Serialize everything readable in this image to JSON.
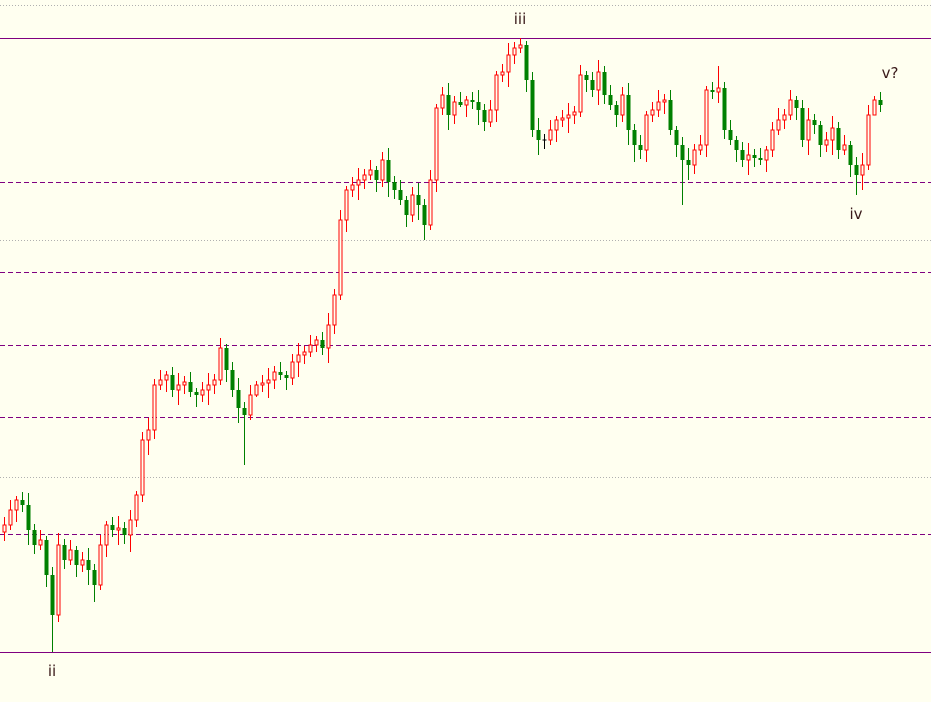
{
  "chart_data": {
    "type": "candlestick",
    "title": "",
    "xlabel": "",
    "ylabel": "",
    "ylim": [
      0,
      702
    ],
    "grid": false,
    "colors": {
      "background": "#fffff0",
      "up": "#ff0000",
      "down": "#008000",
      "doji": "#000000",
      "level": "#800080",
      "dotted": "#b0b0b0",
      "label": "#3a1a1a"
    },
    "candle_fields": [
      "open",
      "high",
      "low",
      "close"
    ],
    "candles": [
      [
        170,
        185,
        161,
        177
      ],
      [
        177,
        202,
        172,
        192
      ],
      [
        192,
        206,
        180,
        202
      ],
      [
        202,
        210,
        190,
        197
      ],
      [
        197,
        209,
        157,
        172
      ],
      [
        172,
        178,
        148,
        157
      ],
      [
        157,
        172,
        152,
        162
      ],
      [
        162,
        166,
        115,
        127
      ],
      [
        127,
        135,
        50,
        87
      ],
      [
        87,
        169,
        80,
        157
      ],
      [
        157,
        163,
        133,
        142
      ],
      [
        142,
        162,
        137,
        152
      ],
      [
        152,
        156,
        125,
        137
      ],
      [
        137,
        150,
        130,
        142
      ],
      [
        142,
        154,
        117,
        132
      ],
      [
        132,
        138,
        100,
        117
      ],
      [
        117,
        167,
        112,
        157
      ],
      [
        157,
        181,
        145,
        177
      ],
      [
        177,
        185,
        165,
        172
      ],
      [
        172,
        186,
        157,
        174
      ],
      [
        174,
        180,
        158,
        167
      ],
      [
        167,
        192,
        150,
        182
      ],
      [
        182,
        211,
        175,
        207
      ],
      [
        207,
        270,
        200,
        262
      ],
      [
        262,
        284,
        247,
        272
      ],
      [
        272,
        323,
        263,
        317
      ],
      [
        317,
        332,
        312,
        322
      ],
      [
        322,
        331,
        310,
        327
      ],
      [
        327,
        335,
        305,
        312
      ],
      [
        312,
        329,
        297,
        317
      ],
      [
        317,
        326,
        308,
        320
      ],
      [
        320,
        330,
        305,
        310
      ],
      [
        310,
        314,
        295,
        307
      ],
      [
        307,
        320,
        300,
        312
      ],
      [
        312,
        329,
        297,
        317
      ],
      [
        317,
        328,
        308,
        322
      ],
      [
        322,
        364,
        317,
        354
      ],
      [
        354,
        358,
        320,
        332
      ],
      [
        332,
        340,
        305,
        312
      ],
      [
        312,
        324,
        279,
        294
      ],
      [
        294,
        300,
        237,
        287
      ],
      [
        287,
        317,
        282,
        307
      ],
      [
        307,
        321,
        305,
        317
      ],
      [
        317,
        327,
        310,
        319
      ],
      [
        319,
        334,
        304,
        322
      ],
      [
        322,
        336,
        313,
        330
      ],
      [
        330,
        340,
        322,
        327
      ],
      [
        327,
        331,
        312,
        324
      ],
      [
        324,
        348,
        317,
        340
      ],
      [
        340,
        359,
        325,
        347
      ],
      [
        347,
        356,
        338,
        350
      ],
      [
        350,
        367,
        345,
        357
      ],
      [
        357,
        366,
        350,
        362
      ],
      [
        362,
        370,
        347,
        354
      ],
      [
        354,
        389,
        339,
        377
      ],
      [
        377,
        413,
        368,
        407
      ],
      [
        407,
        492,
        402,
        482
      ],
      [
        482,
        516,
        470,
        512
      ],
      [
        512,
        525,
        505,
        517
      ],
      [
        517,
        534,
        502,
        522
      ],
      [
        522,
        533,
        513,
        527
      ],
      [
        527,
        542,
        522,
        532
      ],
      [
        532,
        536,
        510,
        522
      ],
      [
        522,
        550,
        515,
        542
      ],
      [
        542,
        554,
        505,
        520
      ],
      [
        520,
        526,
        503,
        512
      ],
      [
        512,
        522,
        497,
        502
      ],
      [
        502,
        506,
        475,
        487
      ],
      [
        487,
        515,
        480,
        507
      ],
      [
        507,
        519,
        482,
        497
      ],
      [
        497,
        503,
        462,
        477
      ],
      [
        477,
        532,
        472,
        522
      ],
      [
        522,
        598,
        510,
        594
      ],
      [
        594,
        615,
        587,
        607
      ],
      [
        607,
        619,
        572,
        587
      ],
      [
        587,
        606,
        578,
        600
      ],
      [
        600,
        610,
        595,
        597
      ],
      [
        597,
        606,
        585,
        602
      ],
      [
        602,
        610,
        593,
        600
      ],
      [
        600,
        612,
        577,
        592
      ],
      [
        592,
        598,
        571,
        580
      ],
      [
        580,
        602,
        575,
        592
      ],
      [
        592,
        631,
        580,
        627
      ],
      [
        627,
        638,
        620,
        630
      ],
      [
        630,
        659,
        615,
        647
      ],
      [
        647,
        660,
        638,
        654
      ],
      [
        654,
        664,
        649,
        657
      ],
      [
        657,
        661,
        610,
        622
      ],
      [
        622,
        630,
        565,
        572
      ],
      [
        572,
        584,
        547,
        562
      ],
      [
        562,
        568,
        553,
        562
      ],
      [
        562,
        582,
        557,
        572
      ],
      [
        572,
        586,
        560,
        582
      ],
      [
        582,
        592,
        575,
        584
      ],
      [
        584,
        599,
        569,
        587
      ],
      [
        587,
        596,
        578,
        590
      ],
      [
        590,
        637,
        585,
        627
      ],
      [
        627,
        631,
        610,
        622
      ],
      [
        622,
        630,
        605,
        612
      ],
      [
        612,
        642,
        597,
        630
      ],
      [
        630,
        636,
        598,
        607
      ],
      [
        607,
        617,
        592,
        597
      ],
      [
        597,
        601,
        575,
        587
      ],
      [
        587,
        615,
        580,
        607
      ],
      [
        607,
        619,
        557,
        572
      ],
      [
        572,
        578,
        540,
        557
      ],
      [
        557,
        567,
        543,
        552
      ],
      [
        552,
        591,
        540,
        587
      ],
      [
        587,
        600,
        580,
        592
      ],
      [
        592,
        612,
        585,
        600
      ],
      [
        600,
        608,
        588,
        602
      ],
      [
        602,
        612,
        567,
        572
      ],
      [
        572,
        576,
        545,
        557
      ],
      [
        557,
        565,
        497,
        542
      ],
      [
        542,
        554,
        522,
        537
      ],
      [
        537,
        558,
        528,
        552
      ],
      [
        552,
        567,
        547,
        557
      ],
      [
        557,
        616,
        545,
        612
      ],
      [
        612,
        620,
        603,
        610
      ],
      [
        610,
        636,
        599,
        614
      ],
      [
        614,
        620,
        563,
        572
      ],
      [
        572,
        582,
        557,
        562
      ],
      [
        562,
        566,
        540,
        552
      ],
      [
        552,
        560,
        535,
        542
      ],
      [
        542,
        559,
        527,
        547
      ],
      [
        547,
        553,
        535,
        544
      ],
      [
        544,
        554,
        537,
        542
      ],
      [
        542,
        556,
        530,
        552
      ],
      [
        552,
        580,
        545,
        572
      ],
      [
        572,
        594,
        567,
        582
      ],
      [
        582,
        593,
        573,
        587
      ],
      [
        587,
        612,
        582,
        602
      ],
      [
        602,
        606,
        582,
        594
      ],
      [
        594,
        602,
        555,
        562
      ],
      [
        562,
        594,
        547,
        582
      ],
      [
        582,
        588,
        568,
        577
      ],
      [
        577,
        581,
        545,
        557
      ],
      [
        557,
        570,
        550,
        562
      ],
      [
        562,
        586,
        547,
        574
      ],
      [
        574,
        580,
        543,
        552
      ],
      [
        552,
        567,
        547,
        557
      ],
      [
        557,
        561,
        525,
        537
      ],
      [
        537,
        545,
        507,
        527
      ],
      [
        527,
        549,
        512,
        537
      ],
      [
        537,
        597,
        532,
        587
      ],
      [
        587,
        606,
        590,
        602
      ],
      [
        602,
        610,
        590,
        597
      ]
    ],
    "levels": [
      {
        "value": 664,
        "style": "solid"
      },
      {
        "value": 50,
        "style": "solid"
      },
      {
        "value": 520,
        "style": "dashed"
      },
      {
        "value": 430,
        "style": "dashed"
      },
      {
        "value": 357,
        "style": "dashed"
      },
      {
        "value": 285,
        "style": "dashed"
      },
      {
        "value": 168,
        "style": "dashed"
      },
      {
        "value": 697,
        "style": "dotted"
      },
      {
        "value": 462,
        "style": "dotted"
      },
      {
        "value": 225,
        "style": "dotted"
      }
    ],
    "wave_labels": [
      {
        "text": "ii",
        "candle": 8,
        "position": "below"
      },
      {
        "text": "iii",
        "candle": 86,
        "position": "above"
      },
      {
        "text": "iv",
        "candle": 142,
        "position": "below"
      },
      {
        "text": "v?",
        "candle": 146,
        "position": "above-right"
      }
    ]
  }
}
